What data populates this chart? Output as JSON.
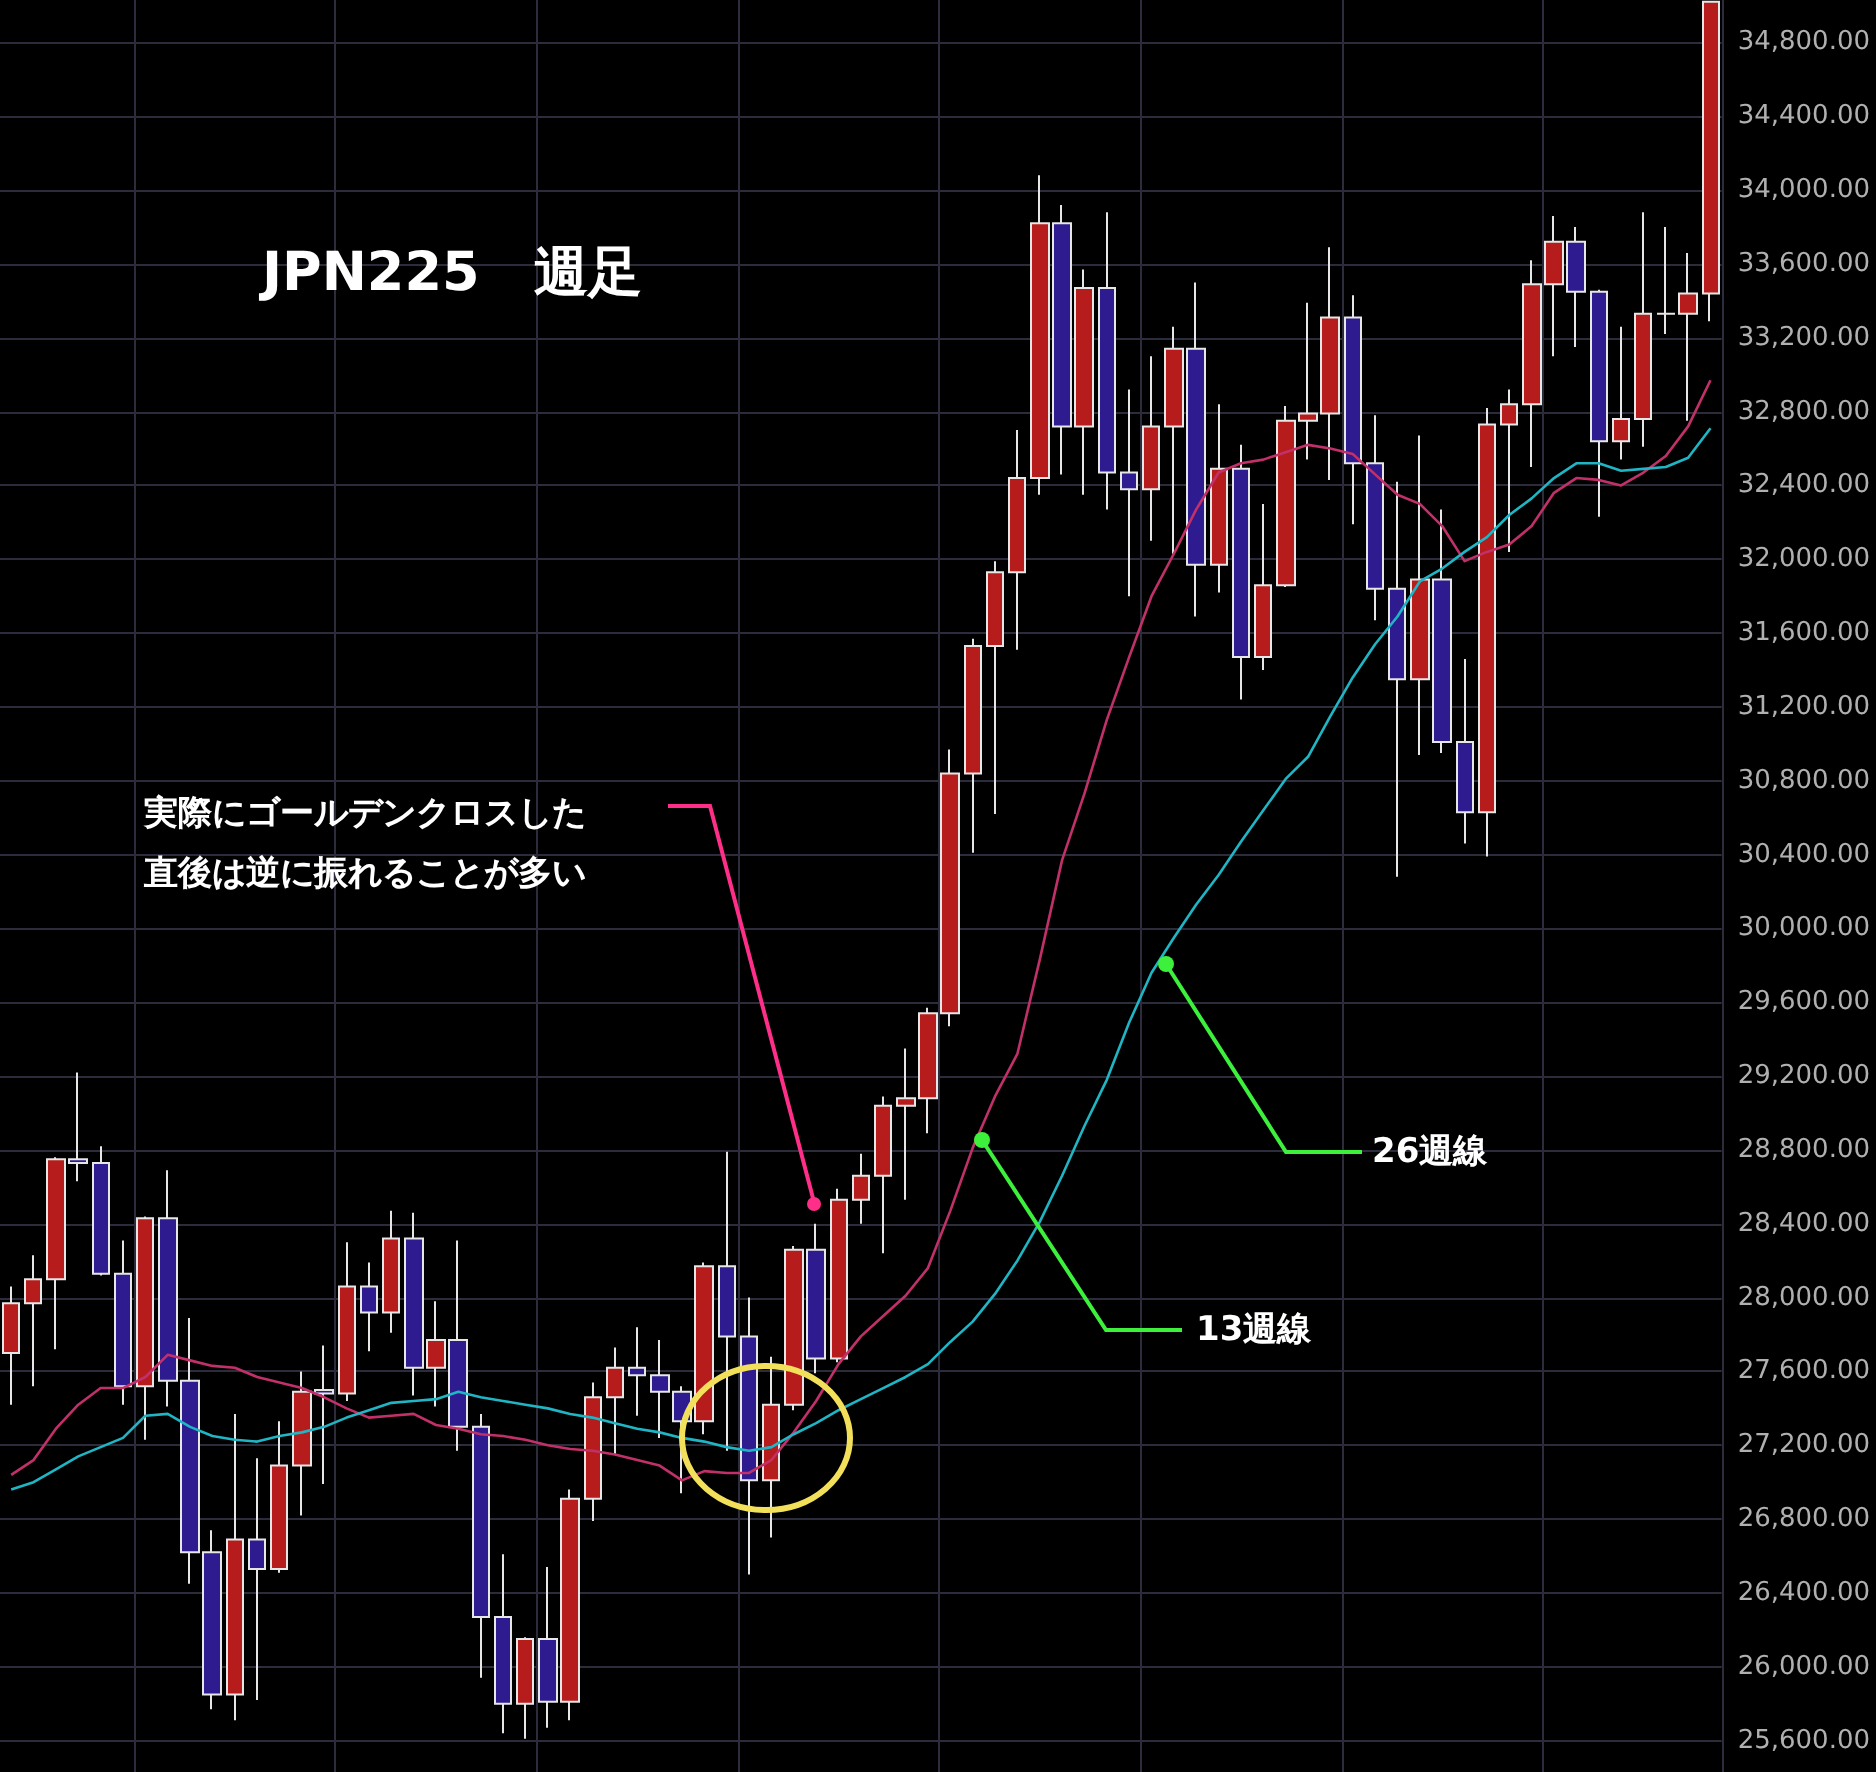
{
  "chart_data": {
    "type": "candlestick",
    "title": "JPN225　週足",
    "annotations": [
      "実際にゴールデンクロスした直後は逆に振れることが多い",
      "13週線",
      "26週線"
    ],
    "categories": [
      null,
      null,
      null,
      null,
      null,
      null,
      null,
      null,
      null,
      null,
      null,
      null,
      null,
      null,
      null,
      null,
      null,
      null,
      null,
      null,
      null,
      null,
      null,
      null,
      null,
      null,
      null,
      null,
      null,
      null,
      null,
      null,
      null,
      null,
      null,
      null,
      null,
      null,
      null,
      null,
      null,
      null,
      null,
      null,
      null,
      null,
      null,
      null,
      null,
      null,
      null,
      null,
      null,
      null,
      null,
      null,
      null,
      null,
      null,
      null,
      null,
      null,
      null,
      null,
      null,
      null,
      null,
      null,
      null,
      null,
      null,
      null,
      null,
      null,
      null,
      null,
      null
    ],
    "series": [
      {
        "ohlc": [
          [
            27700,
            28060,
            27420,
            27970
          ],
          [
            27970,
            28230,
            27520,
            28100
          ],
          [
            28100,
            28760,
            27720,
            28750
          ],
          [
            28750,
            29220,
            28630,
            28730
          ],
          [
            28730,
            28820,
            28120,
            28130
          ],
          [
            28130,
            28310,
            27420,
            27520
          ],
          [
            27520,
            28440,
            27230,
            28430
          ],
          [
            28430,
            28690,
            27410,
            27550
          ],
          [
            27550,
            27890,
            26450,
            26620
          ],
          [
            26620,
            26740,
            25770,
            25850
          ],
          [
            25850,
            27370,
            25710,
            26690
          ],
          [
            26690,
            27130,
            25820,
            26530
          ],
          [
            26530,
            27330,
            26510,
            27090
          ],
          [
            27090,
            27600,
            26820,
            27490
          ],
          [
            27500,
            27740,
            26990,
            27480
          ],
          [
            27480,
            28300,
            27440,
            28060
          ],
          [
            28060,
            28190,
            27710,
            27920
          ],
          [
            27920,
            28470,
            27810,
            28320
          ],
          [
            28320,
            28460,
            27470,
            27620
          ],
          [
            27620,
            27980,
            27410,
            27770
          ],
          [
            27770,
            28310,
            27170,
            27300
          ],
          [
            27300,
            27370,
            25940,
            26270
          ],
          [
            26270,
            26610,
            25640,
            25800
          ],
          [
            25800,
            26160,
            25610,
            26150
          ],
          [
            26150,
            26540,
            25670,
            25810
          ],
          [
            25810,
            26960,
            25710,
            26910
          ],
          [
            26910,
            27540,
            26790,
            27460
          ],
          [
            27460,
            27730,
            27150,
            27620
          ],
          [
            27620,
            27840,
            27360,
            27580
          ],
          [
            27580,
            27770,
            27240,
            27490
          ],
          [
            27490,
            27520,
            26940,
            27330
          ],
          [
            27330,
            28190,
            27260,
            28170
          ],
          [
            28170,
            28790,
            27170,
            27790
          ],
          [
            27790,
            28000,
            26500,
            27010
          ],
          [
            27010,
            27680,
            26700,
            27420
          ],
          [
            27420,
            28280,
            27390,
            28260
          ],
          [
            28260,
            28400,
            27590,
            27670
          ],
          [
            27670,
            28590,
            27650,
            28530
          ],
          [
            28530,
            28780,
            28400,
            28660
          ],
          [
            28660,
            29090,
            28240,
            29040
          ],
          [
            29040,
            29350,
            28530,
            29080
          ],
          [
            29080,
            29570,
            28890,
            29540
          ],
          [
            29540,
            30970,
            29470,
            30840
          ],
          [
            30840,
            31570,
            30410,
            31530
          ],
          [
            31530,
            31990,
            30620,
            31930
          ],
          [
            31930,
            32700,
            31510,
            32440
          ],
          [
            32440,
            34080,
            32350,
            33820
          ],
          [
            33820,
            33920,
            32460,
            32720
          ],
          [
            32720,
            33570,
            32350,
            33470
          ],
          [
            33470,
            33880,
            32270,
            32470
          ],
          [
            32470,
            32920,
            31800,
            32380
          ],
          [
            32380,
            33100,
            32100,
            32720
          ],
          [
            32720,
            33260,
            32030,
            33140
          ],
          [
            33140,
            33500,
            31690,
            31970
          ],
          [
            31970,
            32840,
            31820,
            32490
          ],
          [
            32490,
            32620,
            31240,
            31470
          ],
          [
            31470,
            32300,
            31400,
            31860
          ],
          [
            31860,
            32830,
            31850,
            32750
          ],
          [
            32750,
            33390,
            32540,
            32790
          ],
          [
            32790,
            33690,
            32430,
            33310
          ],
          [
            33310,
            33430,
            32190,
            32520
          ],
          [
            32520,
            32780,
            31670,
            31840
          ],
          [
            31840,
            32420,
            30280,
            31350
          ],
          [
            31350,
            32670,
            30940,
            31890
          ],
          [
            31890,
            32270,
            30950,
            31010
          ],
          [
            31010,
            31460,
            30460,
            30630
          ],
          [
            30630,
            32820,
            30390,
            32730
          ],
          [
            32730,
            32920,
            32040,
            32840
          ],
          [
            32840,
            33620,
            32500,
            33490
          ],
          [
            33490,
            33860,
            33100,
            33720
          ],
          [
            33720,
            33800,
            33150,
            33450
          ],
          [
            33450,
            33460,
            32230,
            32640
          ],
          [
            32640,
            33260,
            32540,
            32760
          ],
          [
            32760,
            33880,
            32610,
            33330
          ],
          [
            33330,
            33800,
            33220,
            33330
          ],
          [
            33330,
            33660,
            32750,
            33440
          ],
          [
            33440,
            35020,
            33290,
            35020
          ]
        ],
        "colors": [
          "#b71c1c",
          "#b71c1c",
          "#b71c1c",
          "#2d1b8f",
          "#2d1b8f",
          "#2d1b8f",
          "#b71c1c",
          "#2d1b8f",
          "#2d1b8f",
          "#2d1b8f",
          "#b71c1c",
          "#2d1b8f",
          "#b71c1c",
          "#b71c1c",
          "#2d1b8f",
          "#b71c1c",
          "#2d1b8f",
          "#b71c1c",
          "#2d1b8f",
          "#b71c1c",
          "#2d1b8f",
          "#2d1b8f",
          "#2d1b8f",
          "#b71c1c",
          "#2d1b8f",
          "#b71c1c",
          "#b71c1c",
          "#b71c1c",
          "#2d1b8f",
          "#2d1b8f",
          "#2d1b8f",
          "#b71c1c",
          "#2d1b8f",
          "#2d1b8f",
          "#b71c1c",
          "#b71c1c",
          "#2d1b8f",
          "#b71c1c",
          "#b71c1c",
          "#b71c1c",
          "#b71c1c",
          "#b71c1c",
          "#b71c1c",
          "#b71c1c",
          "#b71c1c",
          "#b71c1c",
          "#b71c1c",
          "#2d1b8f",
          "#b71c1c",
          "#2d1b8f",
          "#2d1b8f",
          "#b71c1c",
          "#b71c1c",
          "#2d1b8f",
          "#b71c1c",
          "#2d1b8f",
          "#b71c1c",
          "#b71c1c",
          "#b71c1c",
          "#b71c1c",
          "#2d1b8f",
          "#2d1b8f",
          "#2d1b8f",
          "#b71c1c",
          "#2d1b8f",
          "#2d1b8f",
          "#b71c1c",
          "#b71c1c",
          "#b71c1c",
          "#b71c1c",
          "#2d1b8f",
          "#2d1b8f",
          "#b71c1c",
          "#b71c1c",
          "#e6e6e6",
          "#b71c1c",
          "#b71c1c"
        ]
      },
      {
        "type": "line",
        "color": "#c2306a",
        "values": [
          27040,
          27120,
          27290,
          27420,
          27510,
          27510,
          27570,
          27690,
          27660,
          27630,
          27620,
          27570,
          27540,
          27510,
          27460,
          27400,
          27350,
          27360,
          27370,
          27310,
          27290,
          27260,
          27250,
          27230,
          27200,
          27180,
          27170,
          27150,
          27120,
          27090,
          27010,
          27060,
          27050,
          27050,
          27120,
          27270,
          27440,
          27640,
          27790,
          27900,
          28010,
          28160,
          28470,
          28810,
          29090,
          29320,
          29830,
          30370,
          30730,
          31130,
          31470,
          31800,
          32030,
          32270,
          32470,
          32520,
          32540,
          32580,
          32620,
          32600,
          32570,
          32460,
          32350,
          32300,
          32180,
          31990,
          32040,
          32080,
          32180,
          32360,
          32440,
          32430,
          32400,
          32470,
          32560,
          32720,
          32970
        ]
      },
      {
        "type": "line",
        "color": "#1fb5c4",
        "values": [
          26960,
          27000,
          27070,
          27140,
          27190,
          27240,
          27360,
          27370,
          27300,
          27250,
          27230,
          27220,
          27250,
          27270,
          27300,
          27350,
          27390,
          27430,
          27440,
          27450,
          27490,
          27460,
          27440,
          27420,
          27400,
          27370,
          27350,
          27320,
          27290,
          27270,
          27240,
          27220,
          27190,
          27170,
          27190,
          27260,
          27320,
          27390,
          27450,
          27510,
          27570,
          27640,
          27760,
          27870,
          28020,
          28200,
          28410,
          28660,
          28930,
          29180,
          29490,
          29760,
          29950,
          30130,
          30290,
          30470,
          30640,
          30810,
          30930,
          31150,
          31360,
          31540,
          31690,
          31880,
          31950,
          32040,
          32120,
          32240,
          32330,
          32440,
          32520,
          32520,
          32480,
          32490,
          32500,
          32550,
          32710
        ]
      }
    ],
    "ylim": [
      25430,
      35030
    ],
    "yticks": [
      {
        "value": 25600,
        "label": "25,600.00"
      },
      {
        "value": 26000,
        "label": "26,000.00"
      },
      {
        "value": 26400,
        "label": "26,400.00"
      },
      {
        "value": 26800,
        "label": "26,800.00"
      },
      {
        "value": 27200,
        "label": "27,200.00"
      },
      {
        "value": 27600,
        "label": "27,600.00"
      },
      {
        "value": 28000,
        "label": "28,000.00"
      },
      {
        "value": 28400,
        "label": "28,400.00"
      },
      {
        "value": 28800,
        "label": "28,800.00"
      },
      {
        "value": 29200,
        "label": "29,200.00"
      },
      {
        "value": 29600,
        "label": "29,600.00"
      },
      {
        "value": 30000,
        "label": "30,000.00"
      },
      {
        "value": 30400,
        "label": "30,400.00"
      },
      {
        "value": 30800,
        "label": "30,800.00"
      },
      {
        "value": 31200,
        "label": "31,200.00"
      },
      {
        "value": 31600,
        "label": "31,600.00"
      },
      {
        "value": 32000,
        "label": "32,000.00"
      },
      {
        "value": 32400,
        "label": "32,400.00"
      },
      {
        "value": 32800,
        "label": "32,800.00"
      },
      {
        "value": 33200,
        "label": "33,200.00"
      },
      {
        "value": 33600,
        "label": "33,600.00"
      },
      {
        "value": 34000,
        "label": "34,000.00"
      },
      {
        "value": 34400,
        "label": "34,400.00"
      },
      {
        "value": 34800,
        "label": "34,800.00"
      }
    ],
    "grid": true,
    "tick_labels": "y"
  }
}
